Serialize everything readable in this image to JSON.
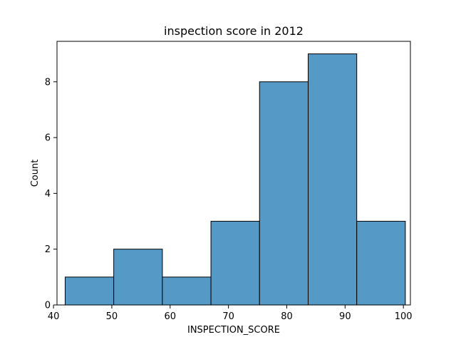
{
  "chart_data": {
    "type": "bar",
    "title": "inspection score in 2012",
    "xlabel": "INSPECTION_SCORE",
    "ylabel": "Count",
    "bins": [
      {
        "x0": 42,
        "x1": 50.33,
        "count": 1
      },
      {
        "x0": 50.33,
        "x1": 58.67,
        "count": 2
      },
      {
        "x0": 58.67,
        "x1": 67,
        "count": 1
      },
      {
        "x0": 67,
        "x1": 75.33,
        "count": 3
      },
      {
        "x0": 75.33,
        "x1": 83.67,
        "count": 8
      },
      {
        "x0": 83.67,
        "x1": 92,
        "count": 9
      },
      {
        "x0": 92,
        "x1": 100.33,
        "count": 3
      }
    ],
    "xlim": [
      40.6,
      101.2
    ],
    "ylim": [
      0,
      9.45
    ],
    "x_ticks": [
      40,
      50,
      60,
      70,
      80,
      90,
      100
    ],
    "y_ticks": [
      0,
      2,
      4,
      6,
      8
    ],
    "bar_color": "#5599c7",
    "edge_color": "#000000",
    "grid": false,
    "legend": "none"
  }
}
